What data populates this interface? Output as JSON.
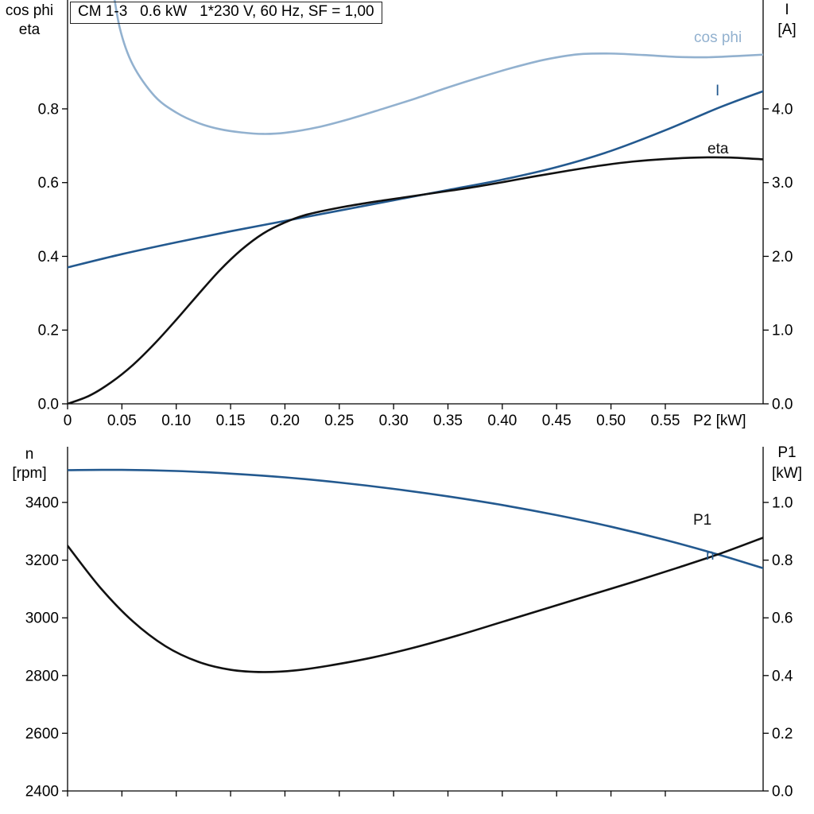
{
  "header": {
    "title_box": "CM 1-3   0.6 kW   1*230 V, 60 Hz, SF = 1,00"
  },
  "colors": {
    "dark_blue": "#23598f",
    "light_blue": "#92b1cf",
    "black": "#111111"
  },
  "curve_labels": {
    "cos_phi": "cos phi",
    "I": "I",
    "eta": "eta",
    "P1": "P1",
    "n": "n"
  },
  "chart_data": [
    {
      "type": "line",
      "x_axis": {
        "label": "P2 [kW]",
        "range": [
          0,
          0.64
        ],
        "ticks": [
          0,
          0.05,
          0.1,
          0.15,
          0.2,
          0.25,
          0.3,
          0.35,
          0.4,
          0.45,
          0.5,
          0.55
        ],
        "tick_labels": [
          "0",
          "0.05",
          "0.10",
          "0.15",
          "0.20",
          "0.25",
          "0.30",
          "0.35",
          "0.40",
          "0.45",
          "0.50",
          "0.55"
        ]
      },
      "left_axis": {
        "labels": [
          "cos phi",
          "eta"
        ],
        "range": [
          0,
          1.078
        ],
        "ticks": [
          0.0,
          0.2,
          0.4,
          0.6,
          0.8
        ],
        "tick_labels": [
          "0.0",
          "0.2",
          "0.4",
          "0.6",
          "0.8"
        ]
      },
      "right_axis": {
        "labels": [
          "I",
          "[A]"
        ],
        "range": [
          0,
          5.39
        ],
        "ticks": [
          0.0,
          1.0,
          2.0,
          3.0,
          4.0
        ],
        "tick_labels": [
          "0.0",
          "1.0",
          "2.0",
          "3.0",
          "4.0"
        ]
      },
      "series": [
        {
          "name": "cos phi",
          "axis": "left",
          "color": "light_blue",
          "points": [
            [
              0.04,
              1.16
            ],
            [
              0.048,
              1.02
            ],
            [
              0.06,
              0.92
            ],
            [
              0.08,
              0.835
            ],
            [
              0.1,
              0.79
            ],
            [
              0.12,
              0.762
            ],
            [
              0.14,
              0.745
            ],
            [
              0.16,
              0.736
            ],
            [
              0.18,
              0.732
            ],
            [
              0.2,
              0.735
            ],
            [
              0.23,
              0.75
            ],
            [
              0.26,
              0.773
            ],
            [
              0.29,
              0.8
            ],
            [
              0.32,
              0.828
            ],
            [
              0.35,
              0.858
            ],
            [
              0.38,
              0.886
            ],
            [
              0.41,
              0.912
            ],
            [
              0.44,
              0.934
            ],
            [
              0.47,
              0.948
            ],
            [
              0.5,
              0.95
            ],
            [
              0.53,
              0.946
            ],
            [
              0.56,
              0.941
            ],
            [
              0.59,
              0.94
            ],
            [
              0.62,
              0.944
            ],
            [
              0.64,
              0.947
            ]
          ]
        },
        {
          "name": "I",
          "axis": "right",
          "color": "dark_blue",
          "points": [
            [
              0,
              1.85
            ],
            [
              0.05,
              2.03
            ],
            [
              0.1,
              2.19
            ],
            [
              0.15,
              2.34
            ],
            [
              0.2,
              2.48
            ],
            [
              0.25,
              2.62
            ],
            [
              0.3,
              2.76
            ],
            [
              0.35,
              2.9
            ],
            [
              0.4,
              3.04
            ],
            [
              0.45,
              3.21
            ],
            [
              0.5,
              3.43
            ],
            [
              0.55,
              3.71
            ],
            [
              0.6,
              4.02
            ],
            [
              0.64,
              4.24
            ]
          ]
        },
        {
          "name": "eta",
          "axis": "left",
          "color": "black",
          "points": [
            [
              0,
              0.0
            ],
            [
              0.02,
              0.022
            ],
            [
              0.04,
              0.058
            ],
            [
              0.06,
              0.105
            ],
            [
              0.08,
              0.163
            ],
            [
              0.1,
              0.228
            ],
            [
              0.12,
              0.296
            ],
            [
              0.14,
              0.362
            ],
            [
              0.16,
              0.418
            ],
            [
              0.18,
              0.462
            ],
            [
              0.2,
              0.492
            ],
            [
              0.22,
              0.513
            ],
            [
              0.25,
              0.532
            ],
            [
              0.28,
              0.547
            ],
            [
              0.31,
              0.56
            ],
            [
              0.34,
              0.573
            ],
            [
              0.37,
              0.586
            ],
            [
              0.4,
              0.601
            ],
            [
              0.43,
              0.617
            ],
            [
              0.46,
              0.632
            ],
            [
              0.49,
              0.646
            ],
            [
              0.52,
              0.657
            ],
            [
              0.55,
              0.664
            ],
            [
              0.58,
              0.668
            ],
            [
              0.61,
              0.668
            ],
            [
              0.64,
              0.663
            ]
          ]
        }
      ]
    },
    {
      "type": "line",
      "x_axis": {
        "label": "",
        "range": [
          0,
          0.64
        ],
        "ticks": [
          0,
          0.05,
          0.1,
          0.15,
          0.2,
          0.25,
          0.3,
          0.35,
          0.4,
          0.45,
          0.5,
          0.55
        ],
        "tick_labels": []
      },
      "left_axis": {
        "labels": [
          "n",
          "[rpm]"
        ],
        "range": [
          2400,
          3571
        ],
        "ticks": [
          2400,
          2600,
          2800,
          3000,
          3200,
          3400
        ],
        "tick_labels": [
          "2400",
          "2600",
          "2800",
          "3000",
          "3200",
          "3400"
        ]
      },
      "right_axis": {
        "labels": [
          "P1",
          "[kW]"
        ],
        "range": [
          0,
          1.171
        ],
        "ticks": [
          0.0,
          0.2,
          0.4,
          0.6,
          0.8,
          1.0
        ],
        "tick_labels": [
          "0.0",
          "0.2",
          "0.4",
          "0.6",
          "0.8",
          "1.0"
        ]
      },
      "series": [
        {
          "name": "n",
          "axis": "left",
          "color": "dark_blue",
          "points": [
            [
              0,
              3512
            ],
            [
              0.05,
              3513
            ],
            [
              0.1,
              3509
            ],
            [
              0.15,
              3500
            ],
            [
              0.2,
              3487
            ],
            [
              0.25,
              3469
            ],
            [
              0.3,
              3447
            ],
            [
              0.35,
              3421
            ],
            [
              0.4,
              3391
            ],
            [
              0.45,
              3356
            ],
            [
              0.5,
              3316
            ],
            [
              0.55,
              3270
            ],
            [
              0.6,
              3218
            ],
            [
              0.64,
              3172
            ]
          ]
        },
        {
          "name": "P1",
          "axis": "right",
          "color": "black",
          "points": [
            [
              0,
              0.85
            ],
            [
              0.03,
              0.705
            ],
            [
              0.06,
              0.588
            ],
            [
              0.09,
              0.502
            ],
            [
              0.12,
              0.448
            ],
            [
              0.15,
              0.42
            ],
            [
              0.18,
              0.412
            ],
            [
              0.21,
              0.418
            ],
            [
              0.24,
              0.434
            ],
            [
              0.28,
              0.462
            ],
            [
              0.32,
              0.498
            ],
            [
              0.36,
              0.54
            ],
            [
              0.4,
              0.586
            ],
            [
              0.44,
              0.632
            ],
            [
              0.48,
              0.678
            ],
            [
              0.52,
              0.724
            ],
            [
              0.56,
              0.772
            ],
            [
              0.6,
              0.822
            ],
            [
              0.64,
              0.878
            ]
          ]
        }
      ]
    }
  ]
}
